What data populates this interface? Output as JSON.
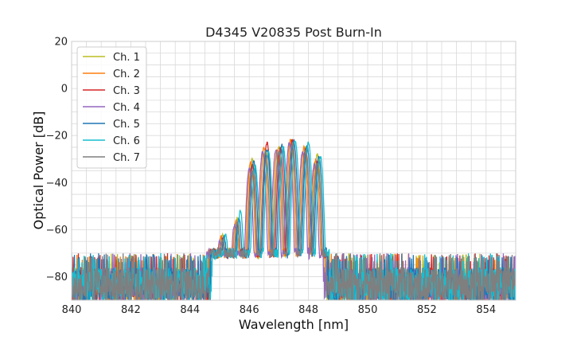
{
  "chart_data": {
    "type": "line",
    "title": "D4345 V20835 Post Burn-In",
    "xlabel": "Wavelength [nm]",
    "ylabel": "Optical Power [dB]",
    "xlim": [
      840,
      855
    ],
    "ylim": [
      -90,
      20
    ],
    "xticks": [
      840,
      842,
      844,
      846,
      848,
      850,
      852,
      854
    ],
    "yticks": [
      20,
      0,
      -20,
      -40,
      -60,
      -80
    ],
    "xtick_labels": [
      "840",
      "842",
      "844",
      "846",
      "848",
      "850",
      "852",
      "854"
    ],
    "ytick_labels": [
      "20",
      "0",
      "−20",
      "−40",
      "−60",
      "−80"
    ],
    "grid": true,
    "legend_position": "top-left",
    "noise_floor_db": -83,
    "series": [
      {
        "name": "Ch. 1",
        "color": "#bcbd22",
        "peaks_x": [
          845.1,
          845.6,
          846.1,
          846.55,
          847.0,
          847.45,
          847.9,
          848.3
        ],
        "peaks_y": [
          -62,
          -55,
          -30,
          -26,
          -25,
          -22,
          -25,
          -28
        ]
      },
      {
        "name": "Ch. 2",
        "color": "#ff7f0e",
        "peaks_x": [
          845.05,
          845.55,
          846.05,
          846.5,
          846.95,
          847.4,
          847.85,
          848.25
        ],
        "peaks_y": [
          -63,
          -56,
          -31,
          -25,
          -26,
          -22,
          -25,
          -30
        ]
      },
      {
        "name": "Ch. 3",
        "color": "#d62728",
        "peaks_x": [
          845.1,
          845.6,
          846.1,
          846.6,
          847.05,
          847.45,
          847.9,
          848.3
        ],
        "peaks_y": [
          -64,
          -57,
          -32,
          -23,
          -25,
          -22,
          -26,
          -31
        ]
      },
      {
        "name": "Ch. 4",
        "color": "#9467bd",
        "peaks_x": [
          845.0,
          845.5,
          846.0,
          846.45,
          846.9,
          847.35,
          847.8,
          848.2
        ],
        "peaks_y": [
          -65,
          -58,
          -34,
          -27,
          -26,
          -23,
          -27,
          -32
        ]
      },
      {
        "name": "Ch. 5",
        "color": "#1f77b4",
        "peaks_x": [
          845.15,
          845.65,
          846.15,
          846.6,
          847.1,
          847.5,
          847.95,
          848.35
        ],
        "peaks_y": [
          -63,
          -55,
          -31,
          -26,
          -24,
          -22,
          -24,
          -29
        ]
      },
      {
        "name": "Ch. 6",
        "color": "#17becf",
        "peaks_x": [
          845.2,
          845.7,
          846.2,
          846.65,
          847.15,
          847.55,
          848.0,
          848.4
        ],
        "peaks_y": [
          -62,
          -52,
          -33,
          -27,
          -25,
          -22,
          -23,
          -29
        ]
      },
      {
        "name": "Ch. 7",
        "color": "#7f7f7f",
        "peaks_x": [
          845.1,
          845.6,
          846.1,
          846.55,
          847.0,
          847.45,
          847.9,
          848.3
        ],
        "peaks_y": [
          -64,
          -57,
          -35,
          -27,
          -27,
          -24,
          -27,
          -32
        ]
      }
    ]
  }
}
